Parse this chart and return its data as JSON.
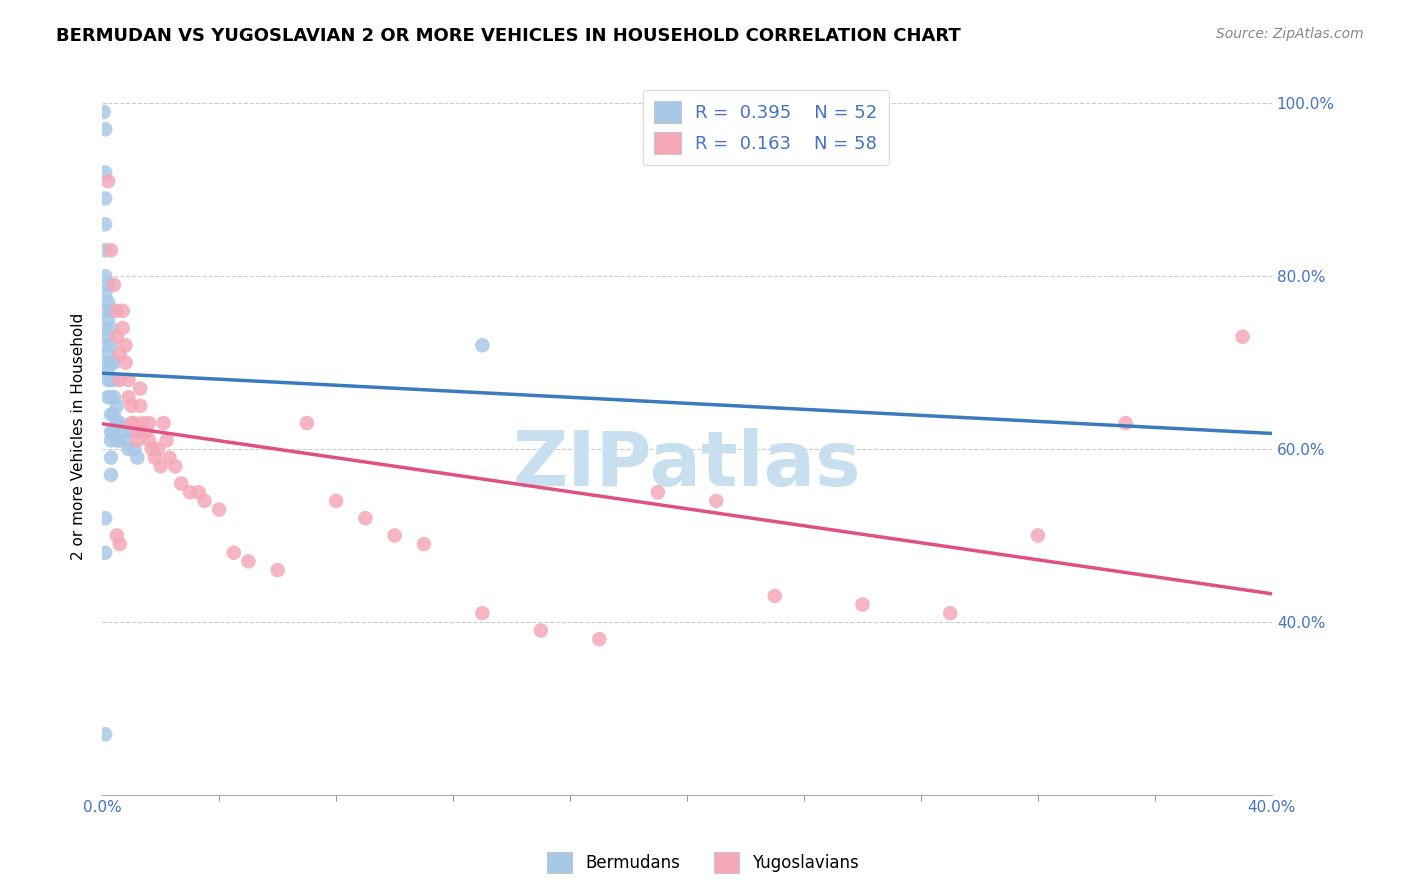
{
  "title": "BERMUDAN VS YUGOSLAVIAN 2 OR MORE VEHICLES IN HOUSEHOLD CORRELATION CHART",
  "source": "Source: ZipAtlas.com",
  "ylabel": "2 or more Vehicles in Household",
  "legend_labels": [
    "Bermudans",
    "Yugoslavians"
  ],
  "blue_R": 0.395,
  "blue_N": 52,
  "pink_R": 0.163,
  "pink_N": 58,
  "blue_color": "#a8c8e8",
  "pink_color": "#f4a8b8",
  "blue_line_color": "#3a7abf",
  "pink_line_color": "#e05080",
  "watermark_text": "ZIPatlas",
  "watermark_color": "#c8dff0",
  "xlim": [
    0.0,
    0.4
  ],
  "ylim": [
    0.2,
    1.03
  ],
  "x_ticks": [
    0.0,
    0.4
  ],
  "y_ticks": [
    0.4,
    0.6,
    0.8,
    1.0
  ],
  "blue_x": [
    0.0005,
    0.001,
    0.001,
    0.001,
    0.001,
    0.001,
    0.001,
    0.001,
    0.001,
    0.001,
    0.001,
    0.001,
    0.002,
    0.002,
    0.002,
    0.002,
    0.002,
    0.002,
    0.002,
    0.002,
    0.003,
    0.003,
    0.003,
    0.003,
    0.003,
    0.003,
    0.003,
    0.003,
    0.003,
    0.003,
    0.003,
    0.004,
    0.004,
    0.004,
    0.004,
    0.004,
    0.005,
    0.005,
    0.005,
    0.006,
    0.006,
    0.007,
    0.008,
    0.009,
    0.01,
    0.011,
    0.012,
    0.013,
    0.001,
    0.001,
    0.001,
    0.13
  ],
  "blue_y": [
    0.99,
    0.97,
    0.92,
    0.89,
    0.86,
    0.83,
    0.8,
    0.78,
    0.76,
    0.74,
    0.72,
    0.7,
    0.79,
    0.77,
    0.75,
    0.73,
    0.71,
    0.69,
    0.68,
    0.66,
    0.76,
    0.74,
    0.72,
    0.7,
    0.68,
    0.66,
    0.64,
    0.62,
    0.61,
    0.59,
    0.57,
    0.7,
    0.68,
    0.66,
    0.64,
    0.62,
    0.65,
    0.63,
    0.61,
    0.63,
    0.61,
    0.62,
    0.61,
    0.6,
    0.62,
    0.6,
    0.59,
    0.62,
    0.52,
    0.48,
    0.27,
    0.72
  ],
  "pink_x": [
    0.002,
    0.003,
    0.004,
    0.005,
    0.005,
    0.006,
    0.006,
    0.007,
    0.007,
    0.008,
    0.008,
    0.009,
    0.009,
    0.01,
    0.01,
    0.011,
    0.012,
    0.012,
    0.013,
    0.013,
    0.014,
    0.015,
    0.016,
    0.016,
    0.017,
    0.018,
    0.019,
    0.02,
    0.021,
    0.022,
    0.023,
    0.025,
    0.027,
    0.03,
    0.033,
    0.035,
    0.04,
    0.045,
    0.05,
    0.06,
    0.07,
    0.08,
    0.09,
    0.1,
    0.11,
    0.13,
    0.15,
    0.17,
    0.19,
    0.21,
    0.23,
    0.26,
    0.29,
    0.32,
    0.35,
    0.39,
    0.005,
    0.006
  ],
  "pink_y": [
    0.91,
    0.83,
    0.79,
    0.76,
    0.73,
    0.71,
    0.68,
    0.76,
    0.74,
    0.72,
    0.7,
    0.68,
    0.66,
    0.65,
    0.63,
    0.63,
    0.62,
    0.61,
    0.67,
    0.65,
    0.63,
    0.62,
    0.63,
    0.61,
    0.6,
    0.59,
    0.6,
    0.58,
    0.63,
    0.61,
    0.59,
    0.58,
    0.56,
    0.55,
    0.55,
    0.54,
    0.53,
    0.48,
    0.47,
    0.46,
    0.63,
    0.54,
    0.52,
    0.5,
    0.49,
    0.41,
    0.39,
    0.38,
    0.55,
    0.54,
    0.43,
    0.42,
    0.41,
    0.5,
    0.63,
    0.73,
    0.5,
    0.49
  ]
}
